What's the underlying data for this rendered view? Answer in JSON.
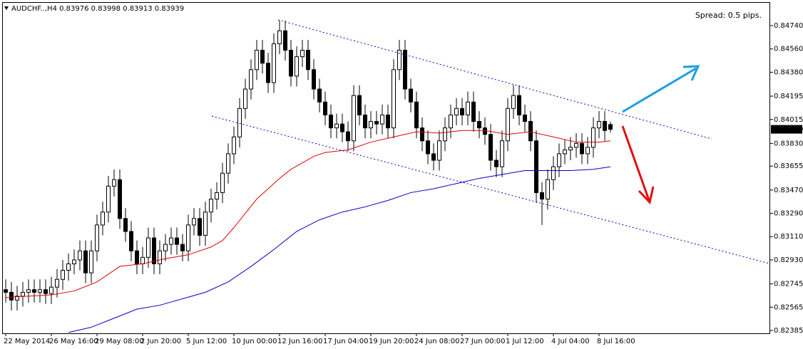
{
  "chart_data": {
    "type": "candlestick",
    "title": "AUDCHF..,H4",
    "annotation": "Spread: 0.5 pips.",
    "annotation_color": "#ffff00",
    "up_color": "#ffffff",
    "down_color": "#000000",
    "categories": [
      "22 May 2014",
      null,
      null,
      null,
      null,
      null,
      null,
      null,
      "26 May 16:00",
      null,
      null,
      null,
      null,
      null,
      null,
      null,
      "29 May 08:00",
      null,
      null,
      null,
      null,
      null,
      null,
      null,
      "2 Jun 20:00",
      null,
      null,
      null,
      null,
      null,
      null,
      null,
      "5 Jun 12:00",
      null,
      null,
      null,
      null,
      null,
      null,
      null,
      "10 Jun 00:00",
      null,
      null,
      null,
      null,
      null,
      null,
      null,
      "12 Jun 16:00",
      null,
      null,
      null,
      null,
      null,
      null,
      null,
      "17 Jun 04:00",
      null,
      null,
      null,
      null,
      null,
      null,
      null,
      "19 Jun 20:00",
      null,
      null,
      null,
      null,
      null,
      null,
      null,
      "24 Jun 08:00",
      null,
      null,
      null,
      null,
      null,
      null,
      null,
      "27 Jun 00:00",
      null,
      null,
      null,
      null,
      null,
      null,
      null,
      "1 Jul 12:00",
      null,
      null,
      null,
      null,
      null,
      null,
      null,
      "4 Jul 04:00",
      null,
      null,
      null,
      null,
      null,
      null,
      null,
      "8 Jul 16:00",
      null,
      null
    ],
    "open": [
      0.827,
      0.8268,
      0.8262,
      0.8265,
      0.8268,
      0.827,
      0.8268,
      0.827,
      0.8267,
      0.8272,
      0.8278,
      0.8285,
      0.829,
      0.8293,
      0.83,
      0.8283,
      0.83,
      0.832,
      0.833,
      0.835,
      0.8355,
      0.8325,
      0.8315,
      0.83,
      0.829,
      0.8295,
      0.831,
      0.829,
      0.83,
      0.8305,
      0.831,
      0.8305,
      0.83,
      0.832,
      0.8325,
      0.8312,
      0.833,
      0.834,
      0.8345,
      0.836,
      0.8375,
      0.8388,
      0.841,
      0.8425,
      0.844,
      0.8455,
      0.8445,
      0.843,
      0.846,
      0.847,
      0.8455,
      0.8435,
      0.845,
      0.8455,
      0.844,
      0.8425,
      0.8415,
      0.8405,
      0.8395,
      0.8398,
      0.8392,
      0.8385,
      0.842,
      0.8405,
      0.8395,
      0.84,
      0.8398,
      0.8405,
      0.8395,
      0.844,
      0.8455,
      0.8425,
      0.8415,
      0.8395,
      0.8385,
      0.8375,
      0.837,
      0.8385,
      0.8395,
      0.8405,
      0.841,
      0.8405,
      0.8415,
      0.84,
      0.8395,
      0.839,
      0.837,
      0.8365,
      0.8385,
      0.841,
      0.842,
      0.8405,
      0.84,
      0.8385,
      0.8345,
      0.834,
      0.8355,
      0.8365,
      0.8375,
      0.8378,
      0.838,
      0.8383,
      0.8375,
      0.838,
      0.8395,
      0.84,
      0.83976
    ],
    "high": [
      0.8278,
      0.8276,
      0.8273,
      0.8276,
      0.8278,
      0.8278,
      0.8278,
      0.8278,
      0.828,
      0.8286,
      0.8293,
      0.8298,
      0.8301,
      0.8308,
      0.8308,
      0.8308,
      0.8328,
      0.8338,
      0.8358,
      0.8363,
      0.8363,
      0.8333,
      0.8323,
      0.8308,
      0.8303,
      0.8318,
      0.8318,
      0.8308,
      0.8313,
      0.8318,
      0.8318,
      0.8313,
      0.8328,
      0.8333,
      0.8333,
      0.8338,
      0.8348,
      0.8353,
      0.8368,
      0.8383,
      0.8396,
      0.8418,
      0.8433,
      0.8448,
      0.8463,
      0.8463,
      0.8453,
      0.8468,
      0.8478,
      0.8478,
      0.8463,
      0.8458,
      0.8463,
      0.8463,
      0.8448,
      0.8433,
      0.8423,
      0.8413,
      0.8406,
      0.8406,
      0.84,
      0.8428,
      0.8428,
      0.8413,
      0.8408,
      0.8408,
      0.8413,
      0.8413,
      0.8448,
      0.8463,
      0.8463,
      0.8433,
      0.8423,
      0.8403,
      0.8393,
      0.8383,
      0.8393,
      0.8403,
      0.8413,
      0.8418,
      0.8418,
      0.8423,
      0.8423,
      0.8408,
      0.8403,
      0.8398,
      0.8378,
      0.8393,
      0.8418,
      0.8428,
      0.8428,
      0.8413,
      0.8408,
      0.8393,
      0.8353,
      0.8363,
      0.8373,
      0.8383,
      0.8386,
      0.8388,
      0.8391,
      0.8391,
      0.8388,
      0.8403,
      0.8408,
      0.8408,
      0.83998
    ],
    "low": [
      0.826,
      0.8254,
      0.8254,
      0.8257,
      0.826,
      0.826,
      0.826,
      0.8259,
      0.8259,
      0.8264,
      0.827,
      0.8277,
      0.8282,
      0.8285,
      0.8275,
      0.8275,
      0.8292,
      0.8312,
      0.8322,
      0.8342,
      0.8317,
      0.8307,
      0.8292,
      0.8282,
      0.8282,
      0.8287,
      0.8282,
      0.8282,
      0.8292,
      0.8297,
      0.8297,
      0.8292,
      0.8292,
      0.8312,
      0.8304,
      0.8304,
      0.8322,
      0.8332,
      0.8337,
      0.8352,
      0.8367,
      0.838,
      0.8402,
      0.8417,
      0.8432,
      0.8437,
      0.8422,
      0.8422,
      0.8452,
      0.8447,
      0.8427,
      0.8427,
      0.8442,
      0.8432,
      0.8417,
      0.8407,
      0.8397,
      0.8387,
      0.8387,
      0.8384,
      0.8377,
      0.8377,
      0.8397,
      0.8387,
      0.8387,
      0.839,
      0.839,
      0.8387,
      0.8387,
      0.8432,
      0.8417,
      0.8407,
      0.8387,
      0.8377,
      0.8367,
      0.8362,
      0.8362,
      0.8377,
      0.8387,
      0.8397,
      0.8397,
      0.8397,
      0.8392,
      0.8387,
      0.8382,
      0.8362,
      0.8357,
      0.8357,
      0.8377,
      0.8402,
      0.8397,
      0.8392,
      0.8377,
      0.8337,
      0.832,
      0.8332,
      0.8347,
      0.8357,
      0.8367,
      0.837,
      0.8372,
      0.8367,
      0.8367,
      0.8372,
      0.8387,
      0.8385,
      0.83913
    ],
    "close": [
      0.8268,
      0.8262,
      0.8265,
      0.8268,
      0.827,
      0.8268,
      0.827,
      0.8267,
      0.8272,
      0.8278,
      0.8285,
      0.829,
      0.8293,
      0.83,
      0.8283,
      0.83,
      0.832,
      0.833,
      0.835,
      0.8355,
      0.8325,
      0.8315,
      0.83,
      0.829,
      0.8295,
      0.831,
      0.829,
      0.83,
      0.8305,
      0.831,
      0.8305,
      0.83,
      0.832,
      0.8325,
      0.8312,
      0.833,
      0.834,
      0.8345,
      0.836,
      0.8375,
      0.8388,
      0.841,
      0.8425,
      0.844,
      0.8455,
      0.8445,
      0.843,
      0.846,
      0.847,
      0.8455,
      0.8435,
      0.845,
      0.8455,
      0.844,
      0.8425,
      0.8415,
      0.8405,
      0.8395,
      0.8398,
      0.8392,
      0.8385,
      0.842,
      0.8405,
      0.8395,
      0.84,
      0.8398,
      0.8405,
      0.8395,
      0.844,
      0.8455,
      0.8425,
      0.8415,
      0.8395,
      0.8385,
      0.8375,
      0.837,
      0.8385,
      0.8395,
      0.8405,
      0.841,
      0.8405,
      0.8415,
      0.84,
      0.8395,
      0.839,
      0.837,
      0.8365,
      0.8385,
      0.841,
      0.842,
      0.8405,
      0.84,
      0.8385,
      0.8345,
      0.834,
      0.8355,
      0.8365,
      0.8375,
      0.8378,
      0.838,
      0.8383,
      0.8375,
      0.838,
      0.8395,
      0.84,
      0.8393,
      0.83939
    ],
    "moving_averages": [
      {
        "color": "#e00000",
        "x": [
          0,
          8,
          12,
          16,
          20,
          24,
          28,
          32,
          36,
          38,
          40,
          42,
          44,
          46,
          48,
          50,
          52,
          54,
          56,
          58,
          60,
          62,
          64,
          68,
          72,
          76,
          80,
          84,
          88,
          92,
          96,
          100,
          104,
          106
        ],
        "values": [
          0.8264,
          0.8266,
          0.8269,
          0.8276,
          0.8288,
          0.829,
          0.8294,
          0.8297,
          0.8303,
          0.8308,
          0.8318,
          0.8329,
          0.834,
          0.8348,
          0.8356,
          0.8363,
          0.8368,
          0.8373,
          0.8376,
          0.8377,
          0.8378,
          0.8381,
          0.8384,
          0.8388,
          0.8392,
          0.8391,
          0.8393,
          0.8393,
          0.839,
          0.8392,
          0.8388,
          0.8384,
          0.8384,
          0.8385
        ]
      },
      {
        "color": "#0000c8",
        "x": [
          11,
          15,
          19,
          23,
          27,
          31,
          35,
          39,
          43,
          47,
          51,
          55,
          59,
          63,
          67,
          71,
          75,
          79,
          83,
          87,
          91,
          95,
          99,
          103,
          106
        ],
        "values": [
          0.8237,
          0.8241,
          0.8248,
          0.8255,
          0.8258,
          0.8263,
          0.8268,
          0.8276,
          0.8288,
          0.8301,
          0.8315,
          0.8324,
          0.833,
          0.8334,
          0.8339,
          0.8345,
          0.8348,
          0.8352,
          0.8356,
          0.8359,
          0.8362,
          0.8362,
          0.8362,
          0.8363,
          0.8365
        ]
      }
    ],
    "ylim": [
      0.82363,
      0.84938
    ],
    "yticks": [
      {
        "value": 0.8474,
        "label": "0.84740"
      },
      {
        "value": 0.8456,
        "label": "0.84560"
      },
      {
        "value": 0.8438,
        "label": "0.84380"
      },
      0.84195,
      0.84015,
      {
        "value": 0.8383,
        "label": "0.83830"
      },
      0.83655,
      {
        "value": 0.8347,
        "label": "0.83470"
      },
      {
        "value": 0.8329,
        "label": "0.83290"
      },
      {
        "value": 0.8311,
        "label": "0.83110"
      },
      {
        "value": 0.8293,
        "label": "0.82930"
      },
      0.82745,
      0.82565,
      0.82385
    ]
  }
}
